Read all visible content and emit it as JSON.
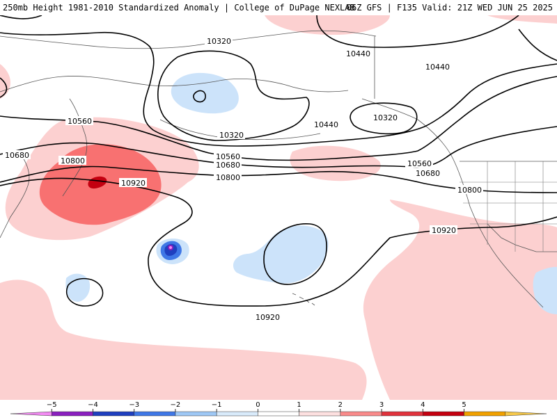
{
  "header": {
    "title_left": "250mb Height 1981-2010 Standardized Anomaly | College of DuPage NEXLAB",
    "title_right": "06Z GFS | F135 Valid: 21Z WED JUN 25 2025"
  },
  "map": {
    "contour_labels": [
      "10320",
      "10440",
      "10440",
      "10320",
      "10560",
      "10320",
      "10440",
      "10680",
      "10800",
      "10920",
      "10560",
      "10680",
      "10800",
      "10560",
      "10680",
      "10800",
      "10920",
      "10920"
    ],
    "anomaly_colors": {
      "m5": "#f28af2",
      "m4": "#8a1fbf",
      "m3": "#1f3fbf",
      "m2": "#3f77e6",
      "m1": "#cce3fa",
      "p1": "#fcd0d0",
      "p2": "#f87171",
      "p3": "#c40010",
      "p4": "#c40010",
      "p5": "#f0a000"
    }
  },
  "colorbar": {
    "ticks": [
      "−5",
      "−4",
      "−3",
      "−2",
      "−1",
      "0",
      "1",
      "2",
      "3",
      "4",
      "5"
    ],
    "colors": [
      "#f28af2",
      "#8a1fbf",
      "#1f3fbf",
      "#3f77e6",
      "#9ec8f5",
      "#d9ebfb",
      "#ffffff",
      "#fde0e0",
      "#f98a8a",
      "#e0323c",
      "#c40010",
      "#f0a000",
      "#f5c84a"
    ]
  }
}
